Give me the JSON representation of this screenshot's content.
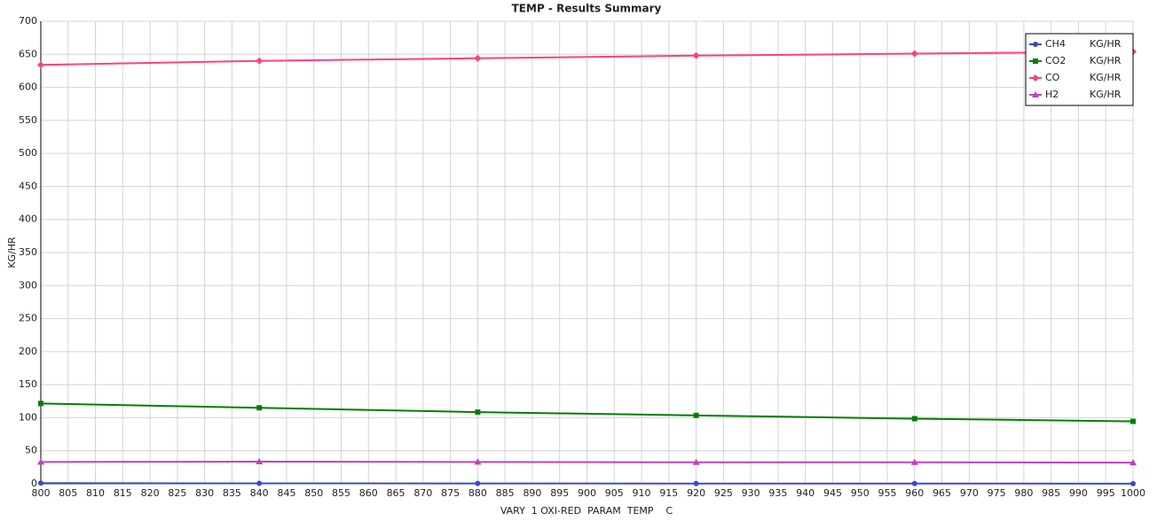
{
  "chart_data": {
    "type": "line",
    "title": "TEMP - Results Summary",
    "x_label": "VARY  1 OXI-RED  PARAM  TEMP    C",
    "y_label": "KG/HR",
    "x": [
      800,
      840,
      880,
      920,
      960,
      1000
    ],
    "series": [
      {
        "name": "CH4",
        "unit": "KG/HR",
        "color": "#3f48cc",
        "marker": "circle",
        "values": [
          1,
          0.7,
          0.5,
          0.4,
          0.3,
          0.2
        ]
      },
      {
        "name": "CO2",
        "unit": "KG/HR",
        "color": "#008000",
        "marker": "square",
        "values": [
          121.5,
          115,
          108.5,
          103.5,
          98.5,
          94.5
        ]
      },
      {
        "name": "CO",
        "unit": "KG/HR",
        "color": "#ff4080",
        "marker": "diamond",
        "values": [
          634,
          640,
          644,
          648,
          651,
          654
        ]
      },
      {
        "name": "H2",
        "unit": "KG/HR",
        "color": "#c040c0",
        "marker": "triangle",
        "values": [
          33,
          33.5,
          33,
          32.5,
          32.5,
          32
        ]
      }
    ],
    "xlim": [
      800,
      1000
    ],
    "ylim": [
      0,
      700
    ],
    "xticks": [
      800,
      805,
      810,
      815,
      820,
      825,
      830,
      835,
      840,
      845,
      850,
      855,
      860,
      865,
      870,
      875,
      880,
      885,
      890,
      895,
      900,
      905,
      910,
      915,
      920,
      925,
      930,
      935,
      940,
      945,
      950,
      955,
      960,
      965,
      970,
      975,
      980,
      985,
      990,
      995,
      1000
    ],
    "yticks": [
      0,
      50,
      100,
      150,
      200,
      250,
      300,
      350,
      400,
      450,
      500,
      550,
      600,
      650,
      700
    ],
    "grid": true,
    "legend": "top-right"
  }
}
